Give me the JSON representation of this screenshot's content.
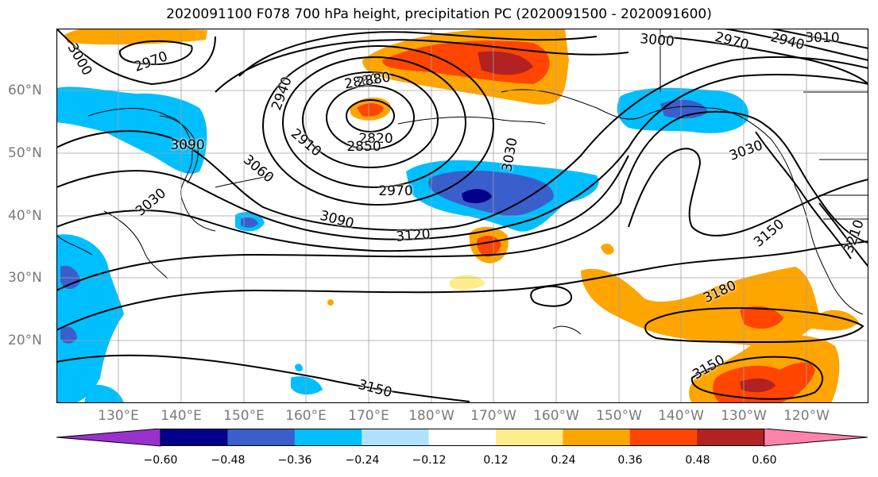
{
  "title": "2020091100 F078 700 hPa height, precipitation PC (2020091500 - 2020091600)",
  "lon_labels": [
    "130°E",
    "140°E",
    "150°E",
    "160°E",
    "170°E",
    "180°W",
    "170°W",
    "160°W",
    "150°W",
    "140°W",
    "130°W",
    "120°W"
  ],
  "lat_labels": [
    "60°N",
    "50°N",
    "40°N",
    "30°N",
    "20°N"
  ],
  "contour_labels": [
    "3000",
    "2970",
    "3090",
    "3030",
    "3060",
    "2940",
    "2910",
    "2880",
    "2820",
    "2850",
    "2970",
    "3030",
    "3090",
    "3120",
    "3000",
    "2970",
    "2940",
    "3030",
    "3150",
    "3210",
    "3180",
    "3150",
    "3150",
    "3010",
    "2880"
  ],
  "colorbar": {
    "ticks": [
      "−0.60",
      "−0.48",
      "−0.36",
      "−0.24",
      "−0.12",
      "0.12",
      "0.24",
      "0.36",
      "0.48",
      "0.60"
    ],
    "colors": [
      "#9932cc",
      "#00008b",
      "#3a5fcd",
      "#00bfff",
      "#b0e2ff",
      "#ffffff",
      "#ffec8b",
      "#ffa500",
      "#ff4500",
      "#b22222",
      "#ff82ab"
    ]
  },
  "map_colors": {
    "ocean": "#ffffff",
    "grid": "#a0a0a0",
    "contour": "#000000"
  }
}
